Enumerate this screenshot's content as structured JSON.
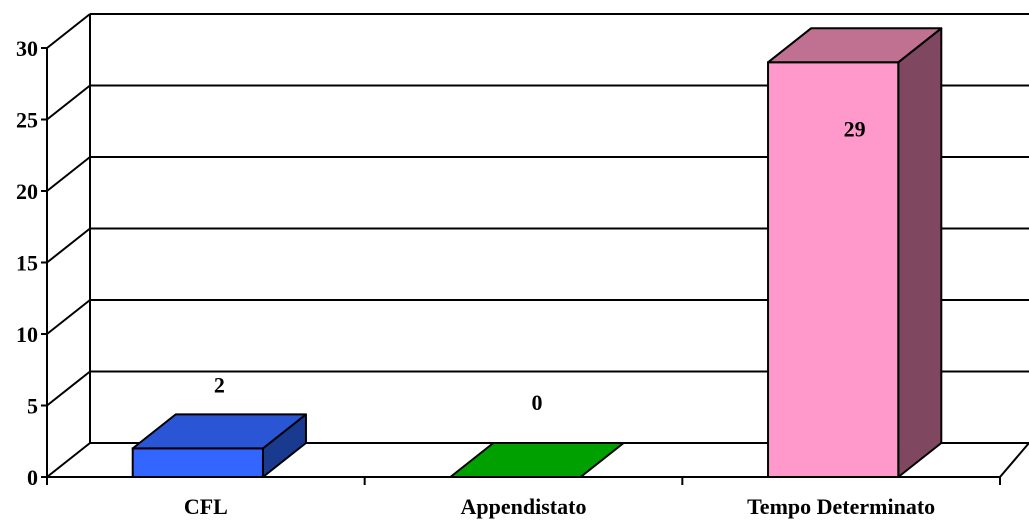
{
  "chart_data": {
    "type": "bar",
    "style": "3d",
    "categories": [
      "CFL",
      "Appendistato",
      "Tempo Determinato"
    ],
    "values": [
      2,
      0,
      29
    ],
    "data_labels": [
      "2",
      "0",
      "29"
    ],
    "colors": {
      "front": [
        "#3366ff",
        "#00c000",
        "#ff99cc"
      ],
      "top": [
        "#2a55d4",
        "#00a000",
        "#c07090"
      ],
      "side": [
        "#1a3a90",
        "#008000",
        "#804860"
      ]
    },
    "title": "",
    "xlabel": "",
    "ylabel": "",
    "ylim": [
      0,
      30
    ],
    "yticks": [
      0,
      5,
      10,
      15,
      20,
      25,
      30
    ],
    "ytick_labels": [
      "0",
      "5",
      "10",
      "15",
      "20",
      "25",
      "30"
    ],
    "grid": true,
    "legend": "none"
  }
}
